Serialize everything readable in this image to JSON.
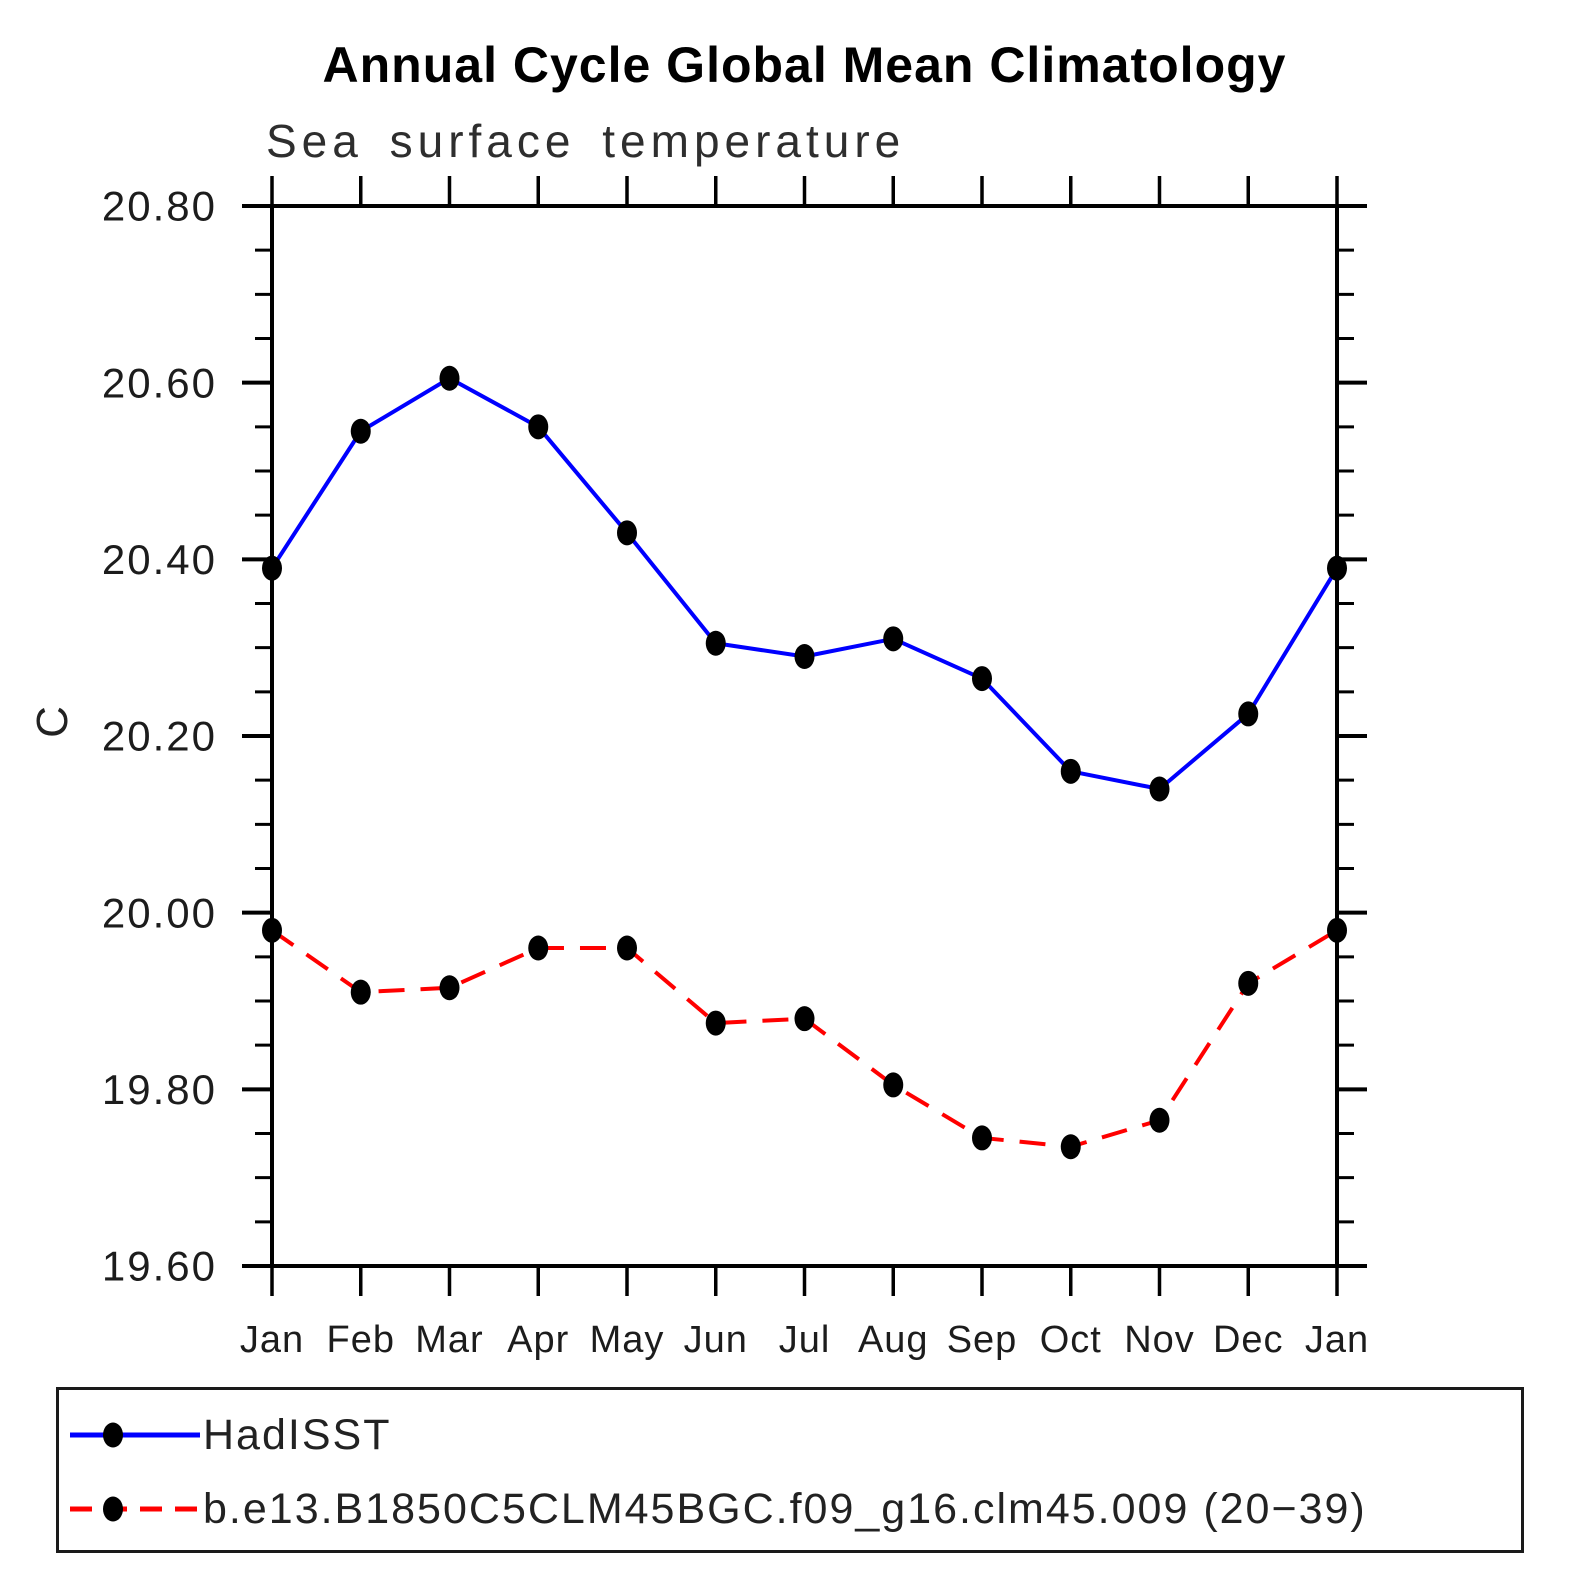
{
  "chart_data": {
    "type": "line",
    "title": "Annual Cycle Global Mean Climatology",
    "subtitle": "Sea surface temperature",
    "ylabel": "C",
    "categories": [
      "Jan",
      "Feb",
      "Mar",
      "Apr",
      "May",
      "Jun",
      "Jul",
      "Aug",
      "Sep",
      "Oct",
      "Nov",
      "Dec",
      "Jan"
    ],
    "ylim": [
      19.6,
      20.8
    ],
    "ytick_major": 0.2,
    "ytick_minor": 0.05,
    "ytick_labels": [
      "19.60",
      "19.80",
      "20.00",
      "20.20",
      "20.40",
      "20.60",
      "20.80"
    ],
    "grid": "off",
    "legend_position": "bottom",
    "series": [
      {
        "name": "HadISST",
        "color": "#0000ff",
        "line_style": "solid",
        "marker": "filled-circle",
        "marker_color": "#000000",
        "values": [
          20.39,
          20.545,
          20.605,
          20.55,
          20.43,
          20.305,
          20.29,
          20.31,
          20.265,
          20.16,
          20.14,
          20.225,
          20.39
        ]
      },
      {
        "name": "b.e13.B1850C5CLM45BGC.f09_g16.clm45.009 (20−39)",
        "color": "#ff0000",
        "line_style": "dashed",
        "marker": "filled-circle",
        "marker_color": "#000000",
        "values": [
          19.98,
          19.91,
          19.915,
          19.96,
          19.96,
          19.875,
          19.88,
          19.805,
          19.745,
          19.735,
          19.765,
          19.92,
          19.98
        ]
      }
    ]
  }
}
